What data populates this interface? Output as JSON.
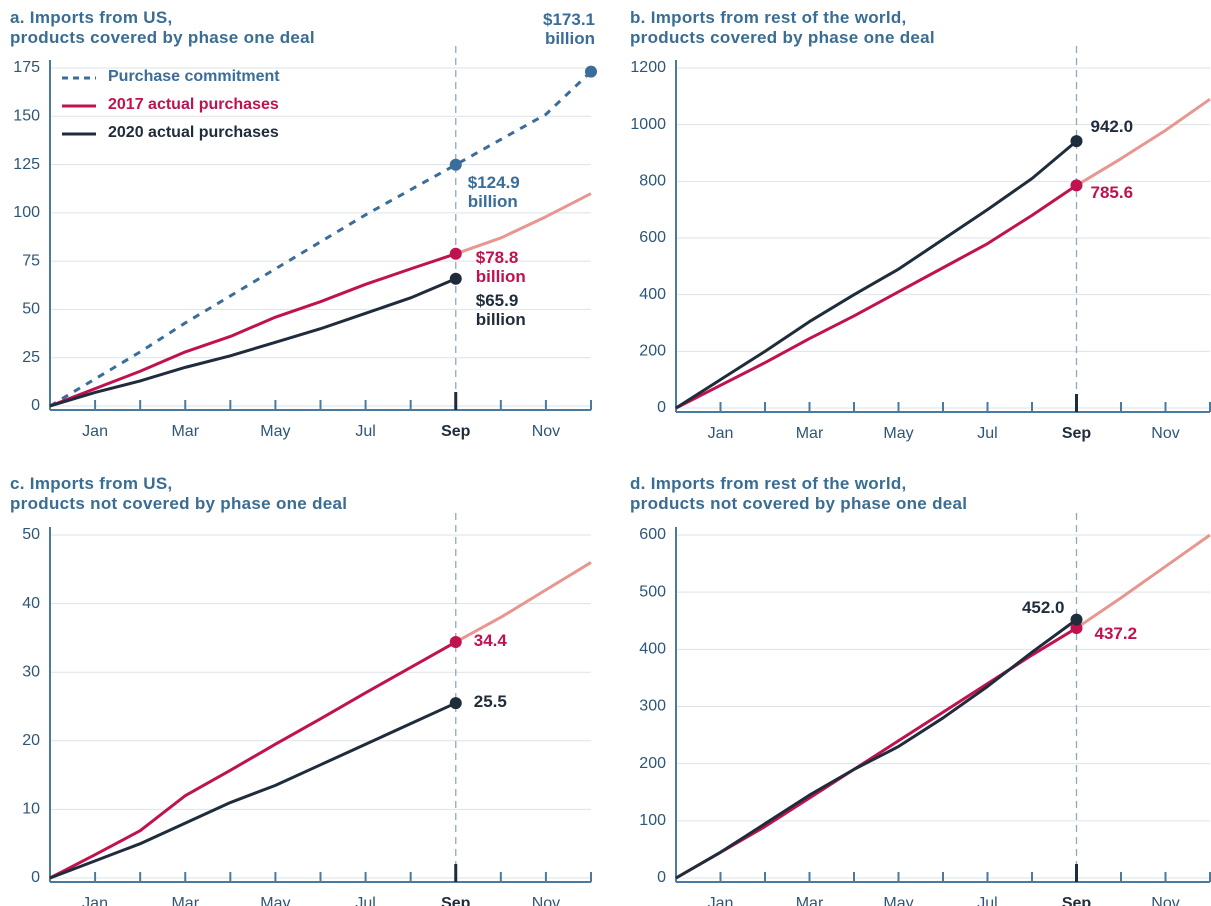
{
  "chart_data": [
    {
      "type": "line",
      "title": "a. Imports from US,\n products covered by phase one deal",
      "categories": [
        null,
        "Jan",
        null,
        "Mar",
        null,
        "May",
        null,
        "Jul",
        null,
        "Sep",
        null,
        "Nov",
        null
      ],
      "vline": "Sep",
      "legend": "upper left",
      "ylim": [
        0,
        175
      ],
      "yticks": [
        0,
        25,
        50,
        75,
        100,
        125,
        150,
        175
      ],
      "grid": true,
      "series": [
        {
          "name": "Purchase commitment",
          "color": "#3a6d99",
          "dash": true,
          "values": [
            0,
            14,
            28,
            43,
            57,
            71,
            85,
            99,
            112,
            124.9,
            138,
            151,
            173.1
          ],
          "value_labels": [
            null,
            null,
            null,
            null,
            null,
            null,
            null,
            null,
            null,
            "$124.9 billion",
            null,
            null,
            "$173.1 billion"
          ]
        },
        {
          "name": "2017 actual purchases",
          "color": "#c0124f",
          "color_after": "#e8968f",
          "values": [
            0,
            9,
            18,
            28,
            36,
            46,
            54,
            63,
            71,
            78.8,
            87,
            98,
            110
          ],
          "value_labels": [
            null,
            null,
            null,
            null,
            null,
            null,
            null,
            null,
            null,
            "$78.8 billion",
            null,
            null,
            null
          ]
        },
        {
          "name": "2020 actual purchases",
          "color": "#1f2c3b",
          "values": [
            0,
            7,
            13,
            20,
            26,
            33,
            40,
            48,
            56,
            65.9,
            null,
            null,
            null
          ],
          "value_labels": [
            null,
            null,
            null,
            null,
            null,
            null,
            null,
            null,
            null,
            "$65.9 billion",
            null,
            null,
            null
          ]
        }
      ]
    },
    {
      "type": "line",
      "title": "b. Imports from rest of the world,\n products covered by phase one deal",
      "categories": [
        null,
        "Jan",
        null,
        "Mar",
        null,
        "May",
        null,
        "Jul",
        null,
        "Sep",
        null,
        "Nov",
        null
      ],
      "vline": "Sep",
      "ylim": [
        0,
        1200
      ],
      "yticks": [
        0,
        200,
        400,
        600,
        800,
        1000,
        1200
      ],
      "grid": true,
      "series": [
        {
          "name": "2017 actual purchases",
          "color": "#c0124f",
          "color_after": "#e8968f",
          "values": [
            0,
            80,
            160,
            245,
            325,
            410,
            495,
            580,
            680,
            785.6,
            880,
            980,
            1090
          ],
          "value_labels": [
            null,
            null,
            null,
            null,
            null,
            null,
            null,
            null,
            null,
            "785.6",
            null,
            null,
            null
          ]
        },
        {
          "name": "2020 actual purchases",
          "color": "#1f2c3b",
          "values": [
            0,
            100,
            200,
            305,
            400,
            490,
            595,
            700,
            810,
            942,
            null,
            null,
            null
          ],
          "value_labels": [
            null,
            null,
            null,
            null,
            null,
            null,
            null,
            null,
            null,
            "942.0",
            null,
            null,
            null
          ]
        }
      ]
    },
    {
      "type": "line",
      "title": "c. Imports from US,\n products not covered by phase one deal",
      "categories": [
        null,
        "Jan",
        null,
        "Mar",
        null,
        "May",
        null,
        "Jul",
        null,
        "Sep",
        null,
        "Nov",
        null
      ],
      "vline": "Sep",
      "ylim": [
        0,
        50
      ],
      "yticks": [
        0,
        10,
        20,
        30,
        40,
        50
      ],
      "grid": true,
      "series": [
        {
          "name": "2017 actual purchases",
          "color": "#c0124f",
          "color_after": "#e8968f",
          "values": [
            0,
            3.4,
            6.9,
            12,
            15.7,
            19.5,
            23.2,
            27,
            30.7,
            34.4,
            38,
            42,
            46
          ],
          "value_labels": [
            null,
            null,
            null,
            null,
            null,
            null,
            null,
            null,
            null,
            "34.4",
            null,
            null,
            null
          ]
        },
        {
          "name": "2020 actual purchases",
          "color": "#1f2c3b",
          "values": [
            0,
            2.5,
            5,
            8,
            11,
            13.5,
            16.5,
            19.5,
            22.5,
            25.5,
            null,
            null,
            null
          ],
          "value_labels": [
            null,
            null,
            null,
            null,
            null,
            null,
            null,
            null,
            null,
            "25.5",
            null,
            null,
            null
          ]
        }
      ]
    },
    {
      "type": "line",
      "title": "d. Imports from rest of the world,\n products not covered by phase one deal",
      "categories": [
        null,
        "Jan",
        null,
        "Mar",
        null,
        "May",
        null,
        "Jul",
        null,
        "Sep",
        null,
        "Nov",
        null
      ],
      "vline": "Sep",
      "ylim": [
        0,
        600
      ],
      "yticks": [
        0,
        100,
        200,
        300,
        400,
        500,
        600
      ],
      "grid": true,
      "series": [
        {
          "name": "2017 actual purchases",
          "color": "#c0124f",
          "color_after": "#e8968f",
          "values": [
            0,
            45,
            90,
            140,
            190,
            240,
            290,
            340,
            390,
            437.2,
            490,
            545,
            600
          ],
          "value_labels": [
            null,
            null,
            null,
            null,
            null,
            null,
            null,
            null,
            null,
            "437.2",
            null,
            null,
            null
          ]
        },
        {
          "name": "2020 actual purchases",
          "color": "#1f2c3b",
          "values": [
            0,
            45,
            95,
            145,
            190,
            230,
            280,
            335,
            395,
            452,
            null,
            null,
            null
          ],
          "value_labels": [
            null,
            null,
            null,
            null,
            null,
            null,
            null,
            null,
            null,
            "452.0",
            null,
            null,
            null
          ]
        }
      ]
    }
  ]
}
